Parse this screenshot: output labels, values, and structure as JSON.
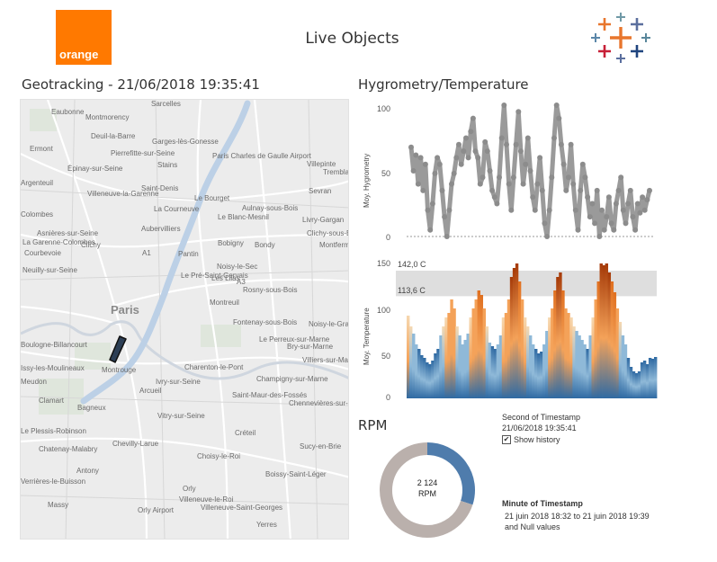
{
  "header": {
    "title": "Live Objects",
    "brand_left": "orange"
  },
  "geotracking": {
    "title": "Geotracking - 21/06/2018 19:35:41",
    "map_labels": [
      {
        "text": "Sarcelles",
        "big": false
      },
      {
        "text": "Eaubonne",
        "big": false
      },
      {
        "text": "Montmorency",
        "big": false
      },
      {
        "text": "Deuil-la-Barre",
        "big": false
      },
      {
        "text": "Garges-lès-Gonesse",
        "big": false
      },
      {
        "text": "Pierrefitte-sur-Seine",
        "big": false
      },
      {
        "text": "Ermont",
        "big": false
      },
      {
        "text": "Épinay-sur-Seine",
        "big": false
      },
      {
        "text": "Stains",
        "big": false
      },
      {
        "text": "Paris Charles de Gaulle Airport",
        "big": false
      },
      {
        "text": "Villepinte",
        "big": false
      },
      {
        "text": "Tremblay",
        "big": false
      },
      {
        "text": "Saint-Denis",
        "big": false
      },
      {
        "text": "Villeneuve-la-Garenne",
        "big": false
      },
      {
        "text": "Le Bourget",
        "big": false
      },
      {
        "text": "Le Blanc-Mesnil",
        "big": false
      },
      {
        "text": "Sevran",
        "big": false
      },
      {
        "text": "Argenteuil",
        "big": false
      },
      {
        "text": "La Courneuve",
        "big": false
      },
      {
        "text": "Aulnay-sous-Bois",
        "big": false
      },
      {
        "text": "Colombes",
        "big": false
      },
      {
        "text": "Livry-Gargan",
        "big": false
      },
      {
        "text": "Asnières-sur-Seine",
        "big": false
      },
      {
        "text": "Aubervilliers",
        "big": false
      },
      {
        "text": "Clichy-sous-Bois",
        "big": false
      },
      {
        "text": "La Garenne-Colombes",
        "big": false
      },
      {
        "text": "Clichy",
        "big": false
      },
      {
        "text": "Bobigny",
        "big": false
      },
      {
        "text": "Bondy",
        "big": false
      },
      {
        "text": "Montfermeil",
        "big": false
      },
      {
        "text": "Courbevoie",
        "big": false
      },
      {
        "text": "Pantin",
        "big": false
      },
      {
        "text": "Neuilly-sur-Seine",
        "big": false
      },
      {
        "text": "Le Pré-Saint-Gervais",
        "big": false
      },
      {
        "text": "Noisy-le-Sec",
        "big": false
      },
      {
        "text": "Les Lilas",
        "big": false
      },
      {
        "text": "Rosny-sous-Bois",
        "big": false
      },
      {
        "text": "Paris",
        "big": true
      },
      {
        "text": "Montreuil",
        "big": false
      },
      {
        "text": "Fontenay-sous-Bois",
        "big": false
      },
      {
        "text": "Noisy-le-Grand",
        "big": false
      },
      {
        "text": "Boulogne-Billancourt",
        "big": false
      },
      {
        "text": "Le Perreux-sur-Marne",
        "big": false
      },
      {
        "text": "Bry-sur-Marne",
        "big": false
      },
      {
        "text": "Issy-les-Moulineaux",
        "big": false
      },
      {
        "text": "Montrouge",
        "big": false
      },
      {
        "text": "Charenton-le-Pont",
        "big": false
      },
      {
        "text": "Villiers-sur-Marne",
        "big": false
      },
      {
        "text": "Meudon",
        "big": false
      },
      {
        "text": "Ivry-sur-Seine",
        "big": false
      },
      {
        "text": "Champigny-sur-Marne",
        "big": false
      },
      {
        "text": "Clamart",
        "big": false
      },
      {
        "text": "Arcueil",
        "big": false
      },
      {
        "text": "Saint-Maur-des-Fossés",
        "big": false
      },
      {
        "text": "Bagneux",
        "big": false
      },
      {
        "text": "Chennevières-sur-Marne",
        "big": false
      },
      {
        "text": "Le Plessis-Robinson",
        "big": false
      },
      {
        "text": "Vitry-sur-Seine",
        "big": false
      },
      {
        "text": "Créteil",
        "big": false
      },
      {
        "text": "Chatenay-Malabry",
        "big": false
      },
      {
        "text": "Chevilly-Larue",
        "big": false
      },
      {
        "text": "Sucy-en-Brie",
        "big": false
      },
      {
        "text": "Choisy-le-Roi",
        "big": false
      },
      {
        "text": "Antony",
        "big": false
      },
      {
        "text": "Verrières-le-Buisson",
        "big": false
      },
      {
        "text": "Boissy-Saint-Léger",
        "big": false
      },
      {
        "text": "Orly",
        "big": false
      },
      {
        "text": "Villeneuve-le-Roi",
        "big": false
      },
      {
        "text": "Massy",
        "big": false
      },
      {
        "text": "Orly Airport",
        "big": false
      },
      {
        "text": "Villeneuve-Saint-Georges",
        "big": false
      },
      {
        "text": "Yerres",
        "big": false
      },
      {
        "text": "A1",
        "big": false
      },
      {
        "text": "A3",
        "big": false
      }
    ]
  },
  "hygrometry_panel": {
    "title": "Hygrometry/Temperature"
  },
  "rpm_panel": {
    "title": "RPM",
    "center_value": "2 124",
    "center_unit": "RPM"
  },
  "filters": {
    "second_label": "Second of Timestamp",
    "second_value": "21/06/2018 19:35:41",
    "show_history_label": "Show history",
    "show_history_checked": true,
    "minute_label": "Minute of Timestamp",
    "minute_value_line1": "21 juin 2018 18:32 to 21 juin 2018 19:39",
    "minute_value_line2": "and Null values"
  },
  "chart_data": [
    {
      "type": "line",
      "ylabel": "Moy. Hygrometry",
      "ylim": [
        0,
        100
      ],
      "yticks": [
        "100",
        "50",
        "0"
      ],
      "grid": false,
      "series": [
        {
          "color": "#9a9a9a",
          "x": [
            0,
            1,
            2,
            3,
            4,
            5,
            6,
            7,
            8,
            9,
            10,
            11,
            12,
            13,
            14,
            15,
            16,
            17,
            18,
            19,
            20,
            21,
            22,
            23,
            24,
            25,
            26,
            27,
            28,
            29,
            30,
            31,
            32,
            33,
            34,
            35,
            36,
            37,
            38,
            39,
            40,
            41,
            42,
            43,
            44,
            45,
            46,
            47,
            48,
            49,
            50,
            51,
            52,
            53,
            54,
            55,
            56,
            57,
            58,
            59,
            60,
            61,
            62,
            63,
            64,
            65,
            66,
            67,
            68,
            69,
            70,
            71,
            72,
            73,
            74,
            75,
            76,
            77,
            78,
            79,
            80,
            81,
            82,
            83,
            84,
            85,
            86,
            87,
            88,
            89,
            90,
            91,
            92,
            93,
            94,
            95,
            96,
            97,
            98,
            99,
            100
          ],
          "values": [
            68,
            50,
            62,
            40,
            60,
            35,
            55,
            20,
            5,
            25,
            48,
            60,
            55,
            35,
            15,
            0,
            20,
            40,
            48,
            60,
            70,
            55,
            65,
            75,
            60,
            80,
            90,
            65,
            60,
            40,
            45,
            72,
            65,
            50,
            35,
            30,
            25,
            45,
            75,
            100,
            70,
            40,
            20,
            45,
            70,
            95,
            65,
            40,
            55,
            75,
            50,
            30,
            20,
            40,
            60,
            35,
            10,
            0,
            20,
            45,
            75,
            100,
            90,
            70,
            55,
            35,
            45,
            70,
            40,
            20,
            5,
            35,
            55,
            45,
            30,
            15,
            25,
            10,
            35,
            0,
            20,
            5,
            15,
            30,
            10,
            5,
            25,
            35,
            45,
            20,
            10,
            25,
            35,
            15,
            5,
            25,
            18,
            30,
            20,
            28,
            35
          ]
        }
      ]
    },
    {
      "type": "bar",
      "ylabel": "Moy. Temperature",
      "ylim": [
        0,
        150
      ],
      "yticks": [
        "150",
        "100",
        "50",
        "0"
      ],
      "reference_band": {
        "low": 113.6,
        "high": 142.0,
        "low_label": "113,6 C",
        "high_label": "142,0 C"
      },
      "color_scale": [
        "#2f6aa3",
        "#8fb9d8",
        "#f6d8b0",
        "#f4a259",
        "#e07020",
        "#a53a08"
      ],
      "values": [
        92,
        80,
        72,
        60,
        55,
        48,
        45,
        40,
        38,
        42,
        50,
        55,
        70,
        80,
        90,
        95,
        110,
        100,
        80,
        70,
        60,
        65,
        72,
        90,
        100,
        110,
        120,
        115,
        100,
        80,
        62,
        58,
        55,
        60,
        70,
        90,
        95,
        110,
        135,
        145,
        150,
        130,
        110,
        90,
        80,
        70,
        60,
        55,
        50,
        52,
        60,
        75,
        90,
        100,
        120,
        135,
        140,
        120,
        100,
        95,
        90,
        80,
        75,
        70,
        65,
        60,
        55,
        70,
        90,
        110,
        130,
        150,
        148,
        150,
        140,
        130,
        118,
        100,
        85,
        70,
        60,
        45,
        35,
        30,
        28,
        30,
        40,
        42,
        38,
        45,
        44,
        46
      ]
    },
    {
      "type": "pie",
      "title": "RPM",
      "slices": [
        {
          "label": "RPM",
          "value": 30,
          "color": "#4f7cac"
        },
        {
          "label": "",
          "value": 70,
          "color": "#bab0ac"
        }
      ]
    }
  ]
}
